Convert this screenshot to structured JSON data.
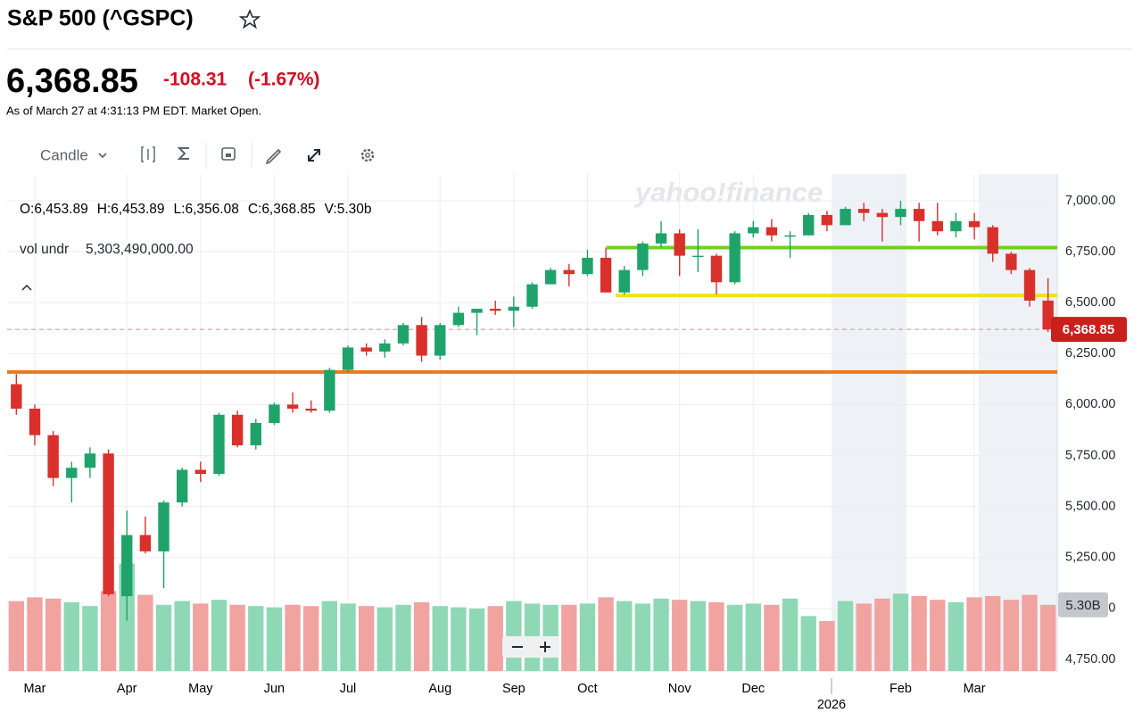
{
  "header": {
    "title": "S&P 500 (^GSPC)",
    "price": "6,368.85",
    "change": "-108.31",
    "change_pct": "(-1.67%)",
    "as_of": "As of March 27 at 4:31:13 PM EDT. Market Open."
  },
  "toolbar": {
    "chart_type": "Candle"
  },
  "ohlc_legend": {
    "items": [
      "O:6,453.89",
      "H:6,453.89",
      "L:6,356.08",
      "C:6,368.85",
      "V:5.30b"
    ],
    "volume_label": "vol undr",
    "volume_value": "5,303,490,000.00"
  },
  "watermark": "yahoo!finance",
  "chart_data": {
    "type": "candlestick",
    "categories": [
      null,
      "Mar",
      null,
      null,
      null,
      null,
      "Apr",
      null,
      null,
      null,
      "May",
      null,
      null,
      null,
      "Jun",
      null,
      null,
      null,
      "Jul",
      null,
      null,
      null,
      null,
      "Aug",
      null,
      null,
      null,
      "Sep",
      null,
      null,
      null,
      "Oct",
      null,
      null,
      null,
      null,
      "Nov",
      null,
      null,
      null,
      "Dec",
      null,
      null,
      null,
      null,
      null,
      null,
      null,
      "Feb",
      null,
      null,
      null,
      "Mar",
      null,
      null,
      null,
      null
    ],
    "open": [
      6100,
      5980,
      5850,
      5640,
      5690,
      5760,
      5060,
      5360,
      5280,
      5520,
      5680,
      5660,
      5950,
      5800,
      5910,
      6000,
      5980,
      5970,
      6170,
      6280,
      6260,
      6300,
      6390,
      6240,
      6390,
      6450,
      6470,
      6460,
      6480,
      6590,
      6660,
      6640,
      6720,
      6550,
      6660,
      6790,
      6840,
      6730,
      6730,
      6600,
      6840,
      6870,
      6830,
      6830,
      6930,
      6880,
      6960,
      6940,
      6920,
      6960,
      6900,
      6850,
      6900,
      6870,
      6740,
      6660,
      6510
    ],
    "high": [
      6150,
      6000,
      5870,
      5720,
      5790,
      5780,
      5480,
      5450,
      5530,
      5690,
      5720,
      5960,
      5970,
      5930,
      6010,
      6060,
      6020,
      6180,
      6290,
      6300,
      6320,
      6400,
      6430,
      6400,
      6480,
      6470,
      6510,
      6530,
      6600,
      6670,
      6690,
      6760,
      6770,
      6680,
      6800,
      6900,
      6860,
      6860,
      6740,
      6850,
      6900,
      6910,
      6850,
      6940,
      6950,
      6970,
      6990,
      6960,
      7000,
      6990,
      6990,
      6940,
      6940,
      6880,
      6750,
      6670,
      6620
    ],
    "low": [
      5950,
      5800,
      5600,
      5520,
      5640,
      5060,
      4940,
      5270,
      5100,
      5500,
      5620,
      5650,
      5790,
      5780,
      5900,
      5960,
      5960,
      5960,
      6160,
      6240,
      6230,
      6290,
      6210,
      6220,
      6380,
      6340,
      6440,
      6380,
      6470,
      6590,
      6580,
      6630,
      6550,
      6540,
      6630,
      6770,
      6630,
      6650,
      6540,
      6590,
      6820,
      6800,
      6720,
      6830,
      6850,
      6880,
      6900,
      6800,
      6880,
      6800,
      6830,
      6820,
      6810,
      6700,
      6640,
      6480,
      6356.08
    ],
    "close": [
      5980,
      5850,
      5640,
      5690,
      5760,
      5070,
      5360,
      5280,
      5520,
      5680,
      5660,
      5950,
      5800,
      5910,
      6000,
      5980,
      5970,
      6170,
      6280,
      6260,
      6300,
      6390,
      6240,
      6390,
      6450,
      6470,
      6460,
      6480,
      6590,
      6660,
      6640,
      6720,
      6550,
      6660,
      6790,
      6840,
      6730,
      6730,
      6600,
      6840,
      6870,
      6830,
      6830,
      6930,
      6880,
      6960,
      6940,
      6920,
      6960,
      6900,
      6850,
      6900,
      6870,
      6740,
      6660,
      6510,
      6368.85
    ],
    "volume": [
      5.6,
      5.9,
      5.8,
      5.5,
      5.2,
      6.4,
      8.6,
      6.1,
      5.3,
      5.6,
      5.4,
      5.7,
      5.3,
      5.2,
      5.1,
      5.3,
      5.2,
      5.6,
      5.4,
      5.2,
      5.1,
      5.3,
      5.5,
      5.2,
      5.1,
      5.0,
      5.2,
      5.6,
      5.4,
      5.3,
      5.3,
      5.4,
      5.9,
      5.6,
      5.4,
      5.8,
      5.7,
      5.6,
      5.5,
      5.3,
      5.4,
      5.3,
      5.8,
      4.4,
      4.0,
      5.6,
      5.4,
      5.8,
      6.2,
      6.0,
      5.7,
      5.5,
      5.9,
      6.0,
      5.7,
      6.1,
      5.3
    ],
    "year_label": "2026",
    "ylim": [
      4693,
      7131
    ],
    "yticks": [
      {
        "value": 4750,
        "label": "4,750.00"
      },
      {
        "value": 5000,
        "label": "5,000.00"
      },
      {
        "value": 5250,
        "label": "5,250.00"
      },
      {
        "value": 5500,
        "label": "5,500.00"
      },
      {
        "value": 5750,
        "label": "5,750.00"
      },
      {
        "value": 6000,
        "label": "6,000.00"
      },
      {
        "value": 6250,
        "label": "6,250.00"
      },
      {
        "value": 6500,
        "label": "6,500.00"
      },
      {
        "value": 6750,
        "label": "6,750.00"
      },
      {
        "value": 7000,
        "label": "7,000.00"
      }
    ],
    "volume_lim": [
      0,
      10
    ],
    "grid": true,
    "up_color": "#1fa36b",
    "down_color": "#d9302c",
    "up_volume_color": "#8fd8b5",
    "down_volume_color": "#f1a3a0",
    "levels": [
      {
        "value": 6160,
        "color": "#e8791e"
      },
      {
        "value": 6770,
        "color": "#6fd11f"
      },
      {
        "value": 6535,
        "color": "#f2e01c"
      }
    ],
    "last_price": {
      "value": 6368.85,
      "label": "6,368.85"
    },
    "last_volume": {
      "value": 5.3,
      "label": "5.30B"
    }
  }
}
